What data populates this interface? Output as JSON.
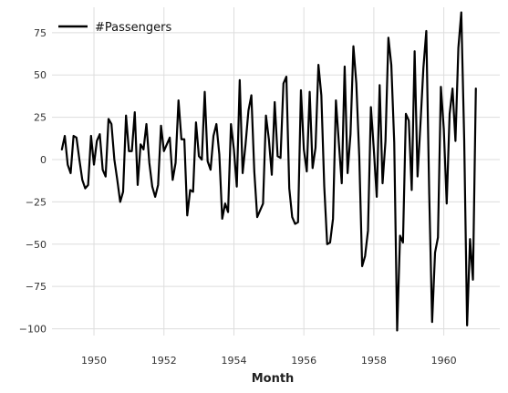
{
  "chart_data": {
    "type": "line",
    "title": "",
    "xlabel": "Month",
    "ylabel": "",
    "xlim": [
      1948.8,
      1961.6
    ],
    "ylim": [
      -104,
      90
    ],
    "x_ticks": [
      1950,
      1952,
      1954,
      1956,
      1958,
      1960
    ],
    "y_ticks": [
      -100,
      -75,
      -50,
      -25,
      0,
      25,
      50,
      75
    ],
    "x_tick_labels": [
      "1950",
      "1952",
      "1954",
      "1956",
      "1958",
      "1960"
    ],
    "y_tick_labels": [
      "−100",
      "−75",
      "−50",
      "−25",
      "0",
      "25",
      "50",
      "75"
    ],
    "grid": true,
    "legend_position": "top-left",
    "series": [
      {
        "name": "#Passengers",
        "color": "#000000",
        "start_year": 1949.083,
        "step": 0.08333,
        "values": [
          6,
          14,
          -3,
          -8,
          14,
          13,
          0,
          -12,
          -17,
          -15,
          14,
          -3,
          11,
          15,
          -6,
          -10,
          24,
          21,
          0,
          -12,
          -25,
          -19,
          26,
          5,
          5,
          28,
          -15,
          9,
          6,
          21,
          -2,
          -16,
          -22,
          -15,
          20,
          5,
          9,
          13,
          -12,
          -2,
          35,
          12,
          12,
          -33,
          -18,
          -19,
          22,
          2,
          0,
          40,
          -1,
          -6,
          14,
          21,
          3,
          -35,
          -26,
          -31,
          21,
          6,
          -16,
          47,
          -8,
          9,
          29,
          38,
          -7,
          -34,
          -30,
          -26,
          26,
          12,
          -9,
          34,
          2,
          1,
          45,
          49,
          -17,
          -34,
          -38,
          -37,
          41,
          6,
          -7,
          40,
          -5,
          7,
          56,
          38,
          -16,
          -50,
          -49,
          -35,
          35,
          10,
          -14,
          55,
          -8,
          15,
          67,
          45,
          2,
          -63,
          -57,
          -42,
          31,
          6,
          -22,
          44,
          -14,
          11,
          72,
          56,
          10,
          -101,
          -45,
          -49,
          27,
          23,
          -18,
          64,
          -10,
          21,
          54,
          76,
          -20,
          -96,
          -55,
          -46,
          43,
          18,
          -26,
          27,
          42,
          11,
          66,
          87,
          12,
          -98,
          -47,
          -71,
          42
        ]
      }
    ]
  }
}
